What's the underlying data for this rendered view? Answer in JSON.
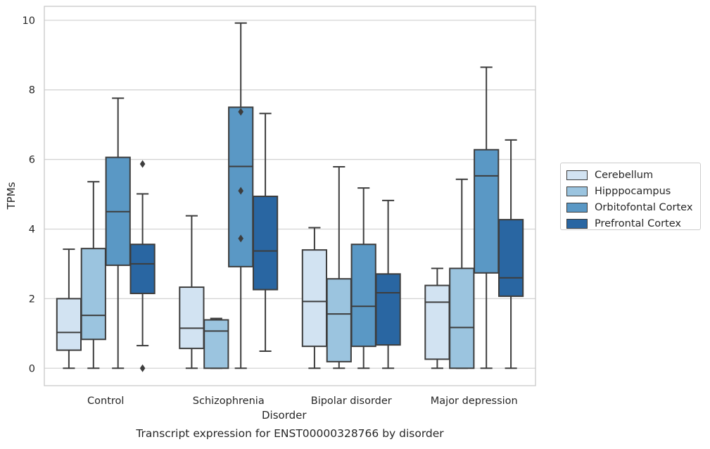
{
  "caption": "Transcript expression for ENST00000328766 by disorder",
  "chart_data": {
    "type": "box",
    "xlabel": "Disorder",
    "ylabel": "TPMs",
    "ylim": [
      -0.5,
      10.4
    ],
    "yticks": [
      0,
      2,
      4,
      6,
      8,
      10
    ],
    "grid": "horizontal",
    "legend_position": "right",
    "categories": [
      "Control",
      "Schizophrenia",
      "Bipolar disorder",
      "Major depression"
    ],
    "series": [
      {
        "name": "Cerebellum",
        "color": "#d2e3f2",
        "boxes": [
          {
            "min": 0,
            "q1": 0.52,
            "median": 1.03,
            "q3": 2.0,
            "max": 3.42,
            "outliers": []
          },
          {
            "min": 0,
            "q1": 0.57,
            "median": 1.15,
            "q3": 2.33,
            "max": 4.38,
            "outliers": []
          },
          {
            "min": 0,
            "q1": 0.63,
            "median": 1.92,
            "q3": 3.4,
            "max": 4.04,
            "outliers": []
          },
          {
            "min": 0,
            "q1": 0.26,
            "median": 1.9,
            "q3": 2.38,
            "max": 2.87,
            "outliers": []
          }
        ]
      },
      {
        "name": "Hipppocampus",
        "color": "#9bc4df",
        "boxes": [
          {
            "min": 0,
            "q1": 0.83,
            "median": 1.52,
            "q3": 3.44,
            "max": 5.36,
            "outliers": []
          },
          {
            "min": 0,
            "q1": 0,
            "median": 1.07,
            "q3": 1.39,
            "max": 1.43,
            "outliers": []
          },
          {
            "min": 0,
            "q1": 0.19,
            "median": 1.56,
            "q3": 2.57,
            "max": 5.79,
            "outliers": []
          },
          {
            "min": 0,
            "q1": 0,
            "median": 1.17,
            "q3": 2.87,
            "max": 5.43,
            "outliers": []
          }
        ]
      },
      {
        "name": "Orbitofontal Cortex",
        "color": "#5a98c5",
        "boxes": [
          {
            "min": 0,
            "q1": 2.96,
            "median": 4.5,
            "q3": 6.06,
            "max": 7.76,
            "outliers": []
          },
          {
            "min": 0,
            "q1": 2.92,
            "median": 5.8,
            "q3": 7.5,
            "max": 9.92,
            "outliers": [
              7.37,
              5.1,
              3.73
            ]
          },
          {
            "min": 0,
            "q1": 0.63,
            "median": 1.78,
            "q3": 3.56,
            "max": 5.18,
            "outliers": []
          },
          {
            "min": 0,
            "q1": 2.74,
            "median": 5.53,
            "q3": 6.28,
            "max": 8.65,
            "outliers": []
          }
        ]
      },
      {
        "name": "Prefrontal Cortex",
        "color": "#2966a2",
        "boxes": [
          {
            "min": 0.65,
            "q1": 2.15,
            "median": 3.0,
            "q3": 3.56,
            "max": 5.01,
            "outliers": [
              5.87,
              0
            ]
          },
          {
            "min": 0.49,
            "q1": 2.26,
            "median": 3.37,
            "q3": 4.94,
            "max": 7.32,
            "outliers": []
          },
          {
            "min": 0,
            "q1": 0.67,
            "median": 2.17,
            "q3": 2.71,
            "max": 4.82,
            "outliers": []
          },
          {
            "min": 0,
            "q1": 2.07,
            "median": 2.6,
            "q3": 4.27,
            "max": 6.56,
            "outliers": []
          }
        ]
      }
    ]
  }
}
